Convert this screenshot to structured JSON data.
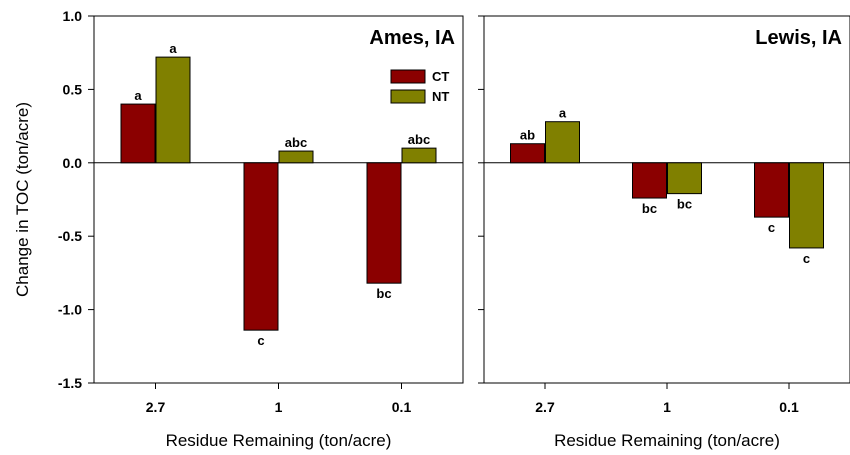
{
  "chart_data": [
    {
      "type": "bar",
      "title": "Ames, IA",
      "xlabel": "Residue Remaining (ton/acre)",
      "ylabel": "Change in TOC (ton/acre)",
      "ylim": [
        -1.5,
        1.0
      ],
      "yticks": [
        "1.0",
        "0.5",
        "0.0",
        "-0.5",
        "-1.0",
        "-1.5"
      ],
      "categories": [
        "2.7",
        "1",
        "0.1"
      ],
      "legend_position": "top-right",
      "series": [
        {
          "name": "CT",
          "color": "#8b0000",
          "values": [
            0.4,
            -1.14,
            -0.82
          ],
          "labels": [
            "a",
            "c",
            "bc"
          ]
        },
        {
          "name": "NT",
          "color": "#808000",
          "values": [
            0.72,
            0.08,
            0.1
          ],
          "labels": [
            "a",
            "abc",
            "abc"
          ]
        }
      ]
    },
    {
      "type": "bar",
      "title": "Lewis, IA",
      "xlabel": "Residue Remaining (ton/acre)",
      "ylim": [
        -1.5,
        1.0
      ],
      "categories": [
        "2.7",
        "1",
        "0.1"
      ],
      "series": [
        {
          "name": "CT",
          "color": "#8b0000",
          "values": [
            0.13,
            -0.24,
            -0.37
          ],
          "labels": [
            "ab",
            "bc",
            "c"
          ]
        },
        {
          "name": "NT",
          "color": "#808000",
          "values": [
            0.28,
            -0.21,
            -0.58
          ],
          "labels": [
            "a",
            "bc",
            "c"
          ]
        }
      ]
    }
  ]
}
